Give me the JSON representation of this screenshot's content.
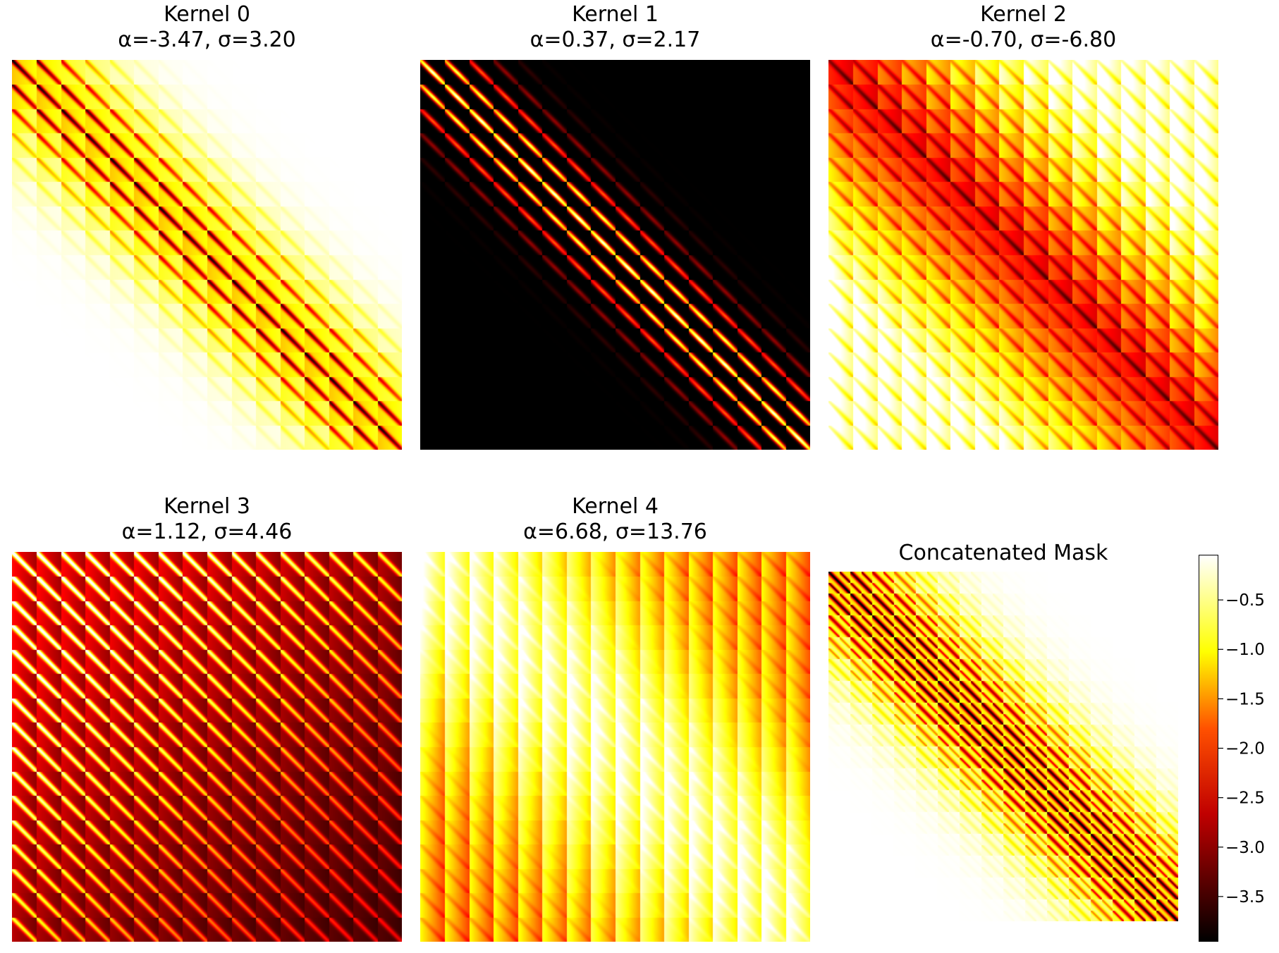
{
  "chart_data": [
    {
      "type": "heatmap",
      "title": "Kernel 0",
      "subtitle": "α=-3.47, σ=3.20",
      "params": {
        "alpha": -3.47,
        "sigma": 3.2
      },
      "grid": false,
      "colormap": "hot",
      "colormap_colors": [
        "#000000",
        "#e62e0a",
        "#ffff00",
        "#ffffff"
      ],
      "layout": "diagonal-band-inverted-blocks"
    },
    {
      "type": "heatmap",
      "title": "Kernel 1",
      "subtitle": "α=0.37, σ=2.17",
      "params": {
        "alpha": 0.37,
        "sigma": 2.17
      },
      "grid": false,
      "colormap": "hot",
      "colormap_colors": [
        "#000000",
        "#e62e0a",
        "#ffff00",
        "#ffffff"
      ],
      "layout": "diagonal-band-stripes"
    },
    {
      "type": "heatmap",
      "title": "Kernel 2",
      "subtitle": "α=-0.70, σ=-6.80",
      "params": {
        "alpha": -0.7,
        "sigma": -6.8
      },
      "grid": false,
      "colormap": "hot",
      "colormap_colors": [
        "#000000",
        "#e62e0a",
        "#ffff00",
        "#ffffff"
      ],
      "layout": "full-blocks-dark-diagonal"
    },
    {
      "type": "heatmap",
      "title": "Kernel 3",
      "subtitle": "α=1.12, σ=4.46",
      "params": {
        "alpha": 1.12,
        "sigma": 4.46
      },
      "grid": false,
      "colormap": "hot",
      "colormap_colors": [
        "#000000",
        "#e62e0a",
        "#ffff00",
        "#ffffff"
      ],
      "layout": "full-blocks-bright-diagonal-fading"
    },
    {
      "type": "heatmap",
      "title": "Kernel 4",
      "subtitle": "α=6.68, σ=13.76",
      "params": {
        "alpha": 6.68,
        "sigma": 13.76
      },
      "grid": false,
      "colormap": "hot",
      "colormap_colors": [
        "#000000",
        "#e62e0a",
        "#ffff00",
        "#ffffff"
      ],
      "layout": "full-blocks-bright"
    },
    {
      "type": "heatmap",
      "title": "Concatenated Mask",
      "grid": false,
      "colormap": "hot",
      "colormap_colors": [
        "#000000",
        "#e62e0a",
        "#ffff00",
        "#ffffff"
      ],
      "layout": "diagonal-band-fine-blocks",
      "colorbar": {
        "range": [
          -3.95,
          -0.05
        ],
        "ticks": [
          -0.5,
          -1.0,
          -1.5,
          -2.0,
          -2.5,
          -3.0,
          -3.5
        ],
        "tick_labels": [
          "−0.5",
          "−1.0",
          "−1.5",
          "−2.0",
          "−2.5",
          "−3.0",
          "−3.5"
        ]
      }
    }
  ]
}
